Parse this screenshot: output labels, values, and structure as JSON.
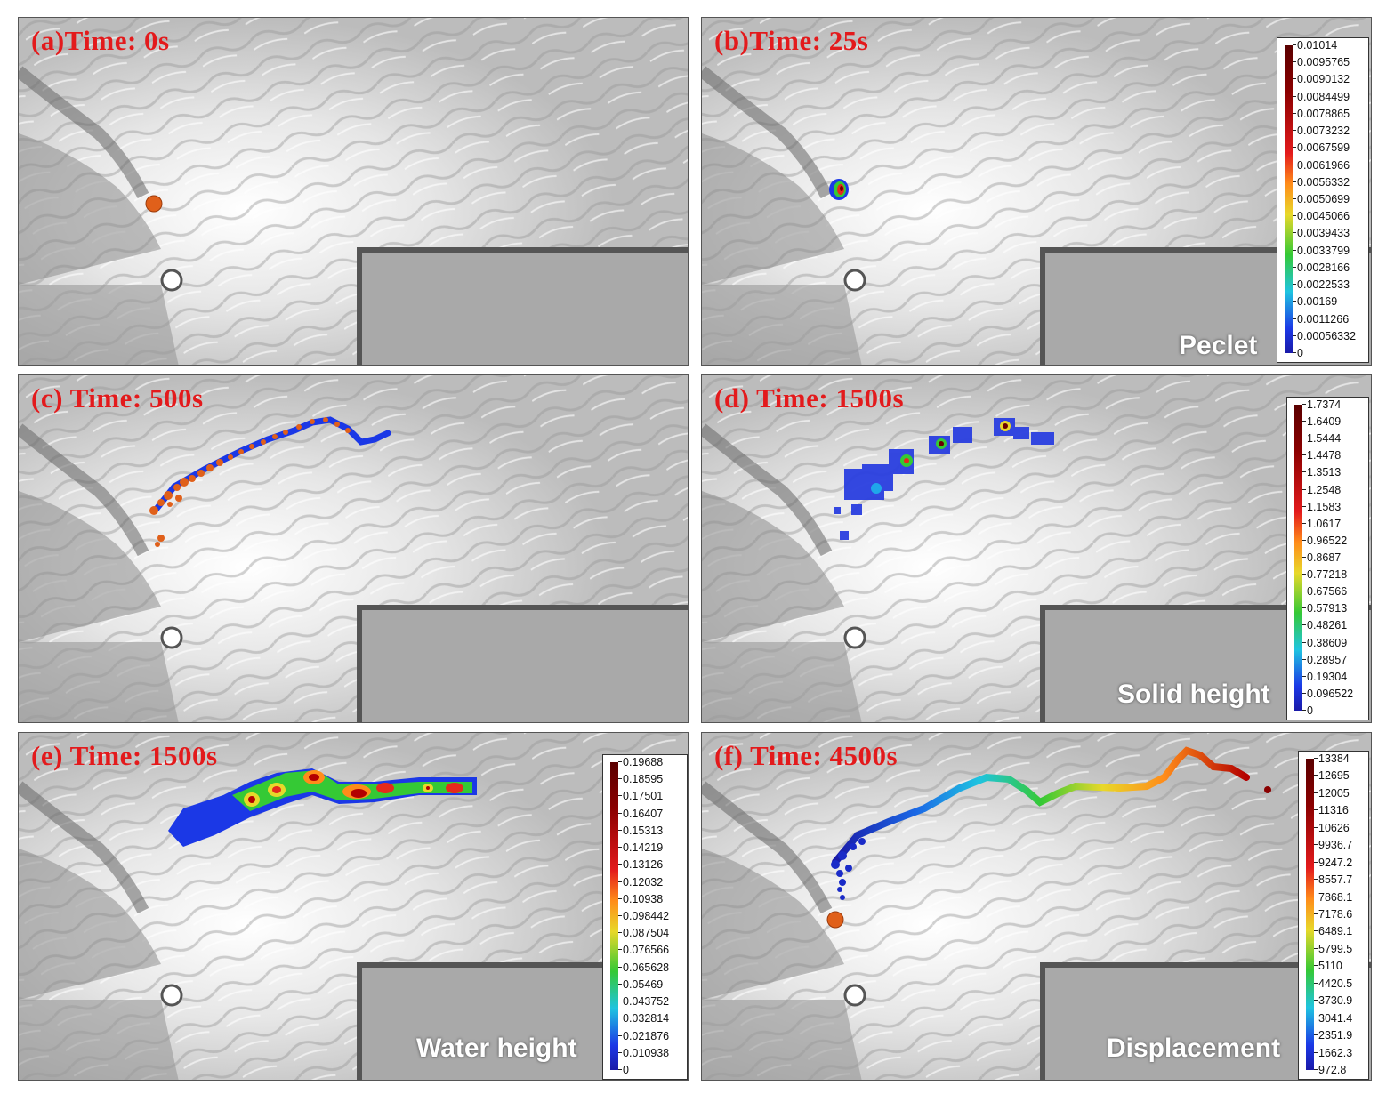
{
  "panels": [
    {
      "id": "a",
      "title": "(a)Time: 0s",
      "variable": "",
      "legend": []
    },
    {
      "id": "b",
      "title": "(b)Time: 25s",
      "variable": "Peclet",
      "legend": [
        "0.01014",
        "0.0095765",
        "0.0090132",
        "0.0084499",
        "0.0078865",
        "0.0073232",
        "0.0067599",
        "0.0061966",
        "0.0056332",
        "0.0050699",
        "0.0045066",
        "0.0039433",
        "0.0033799",
        "0.0028166",
        "0.0022533",
        "0.00169",
        "0.0011266",
        "0.00056332",
        "0"
      ]
    },
    {
      "id": "c",
      "title": "(c) Time: 500s",
      "variable": "",
      "legend": []
    },
    {
      "id": "d",
      "title": "(d) Time: 1500s",
      "variable": "Solid height",
      "legend": [
        "1.7374",
        "1.6409",
        "1.5444",
        "1.4478",
        "1.3513",
        "1.2548",
        "1.1583",
        "1.0617",
        "0.96522",
        "0.8687",
        "0.77218",
        "0.67566",
        "0.57913",
        "0.48261",
        "0.38609",
        "0.28957",
        "0.19304",
        "0.096522",
        "0"
      ]
    },
    {
      "id": "e",
      "title": "(e) Time: 1500s",
      "variable": "Water height",
      "legend": [
        "0.19688",
        "0.18595",
        "0.17501",
        "0.16407",
        "0.15313",
        "0.14219",
        "0.13126",
        "0.12032",
        "0.10938",
        "0.098442",
        "0.087504",
        "0.076566",
        "0.065628",
        "0.05469",
        "0.043752",
        "0.032814",
        "0.021876",
        "0.010938",
        "0"
      ]
    },
    {
      "id": "f",
      "title": "(f) Time: 4500s",
      "variable": "Displacement",
      "legend": [
        "13384",
        "12695",
        "12005",
        "11316",
        "10626",
        "9936.7",
        "9247.2",
        "8557.7",
        "7868.1",
        "7178.6",
        "6489.1",
        "5799.5",
        "5110",
        "4420.5",
        "3730.9",
        "3041.4",
        "2351.9",
        "1662.3",
        "972.8"
      ]
    }
  ],
  "colors": {
    "title": "#e31a1c",
    "debris": "#e0601a",
    "terrain": "#b0b0b0",
    "box": "#a9a9a9"
  }
}
